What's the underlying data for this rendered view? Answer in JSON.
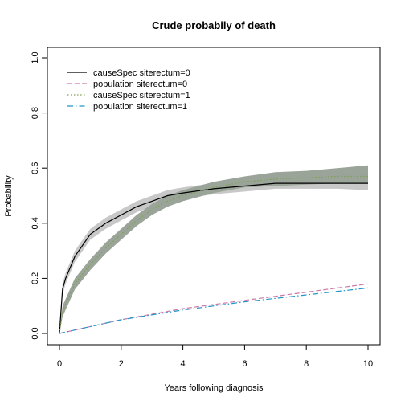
{
  "chart_data": {
    "type": "line",
    "title": "Crude probabily of death",
    "xlabel": "Years following diagnosis",
    "ylabel": "Probability",
    "xlim": [
      0,
      10
    ],
    "ylim": [
      0,
      1
    ],
    "x_ticks": [
      "0",
      "2",
      "4",
      "6",
      "8",
      "10"
    ],
    "y_ticks": [
      "0.0",
      "0.2",
      "0.4",
      "0.6",
      "0.8",
      "1.0"
    ],
    "grid": false,
    "legend_position": "top-left",
    "legend": [
      "causeSpec siterectum=0",
      "population siterectum=0",
      "causeSpec siterectum=1",
      "population siterectum=1"
    ],
    "colors": {
      "causeSpec_0": "#000000",
      "population_0": "#cc79a7",
      "causeSpec_1": "#7fa04f",
      "population_1": "#2196c9",
      "ci_band_0": "#c8c8c8",
      "ci_band_1": "#9aa498"
    },
    "series": [
      {
        "name": "causeSpec siterectum=0",
        "x": [
          0,
          0.1,
          0.2,
          0.5,
          1.0,
          1.5,
          2.0,
          2.5,
          3.0,
          3.5,
          4.0,
          5.0,
          6.0,
          7.0,
          8.0,
          9.0,
          10.0
        ],
        "y": [
          0,
          0.16,
          0.2,
          0.28,
          0.36,
          0.4,
          0.43,
          0.46,
          0.48,
          0.5,
          0.51,
          0.525,
          0.535,
          0.545,
          0.545,
          0.545,
          0.545
        ],
        "ci_lower": [
          0,
          0.14,
          0.18,
          0.26,
          0.34,
          0.38,
          0.41,
          0.44,
          0.46,
          0.48,
          0.49,
          0.505,
          0.515,
          0.525,
          0.525,
          0.525,
          0.52
        ],
        "ci_upper": [
          0,
          0.18,
          0.22,
          0.3,
          0.38,
          0.42,
          0.45,
          0.48,
          0.5,
          0.52,
          0.53,
          0.545,
          0.555,
          0.565,
          0.565,
          0.57,
          0.575
        ]
      },
      {
        "name": "population siterectum=0",
        "x": [
          0,
          2,
          4,
          6,
          8,
          10
        ],
        "y": [
          0,
          0.05,
          0.09,
          0.12,
          0.15,
          0.18
        ]
      },
      {
        "name": "causeSpec siterectum=1",
        "x": [
          0,
          0.1,
          0.5,
          1.0,
          1.5,
          2.0,
          2.5,
          3.0,
          3.5,
          4.0,
          5.0,
          6.0,
          7.0,
          8.0,
          9.0,
          10.0
        ],
        "y": [
          0,
          0.08,
          0.18,
          0.25,
          0.31,
          0.36,
          0.41,
          0.45,
          0.48,
          0.5,
          0.53,
          0.55,
          0.56,
          0.565,
          0.57,
          0.57
        ],
        "ci_lower": [
          0,
          0.06,
          0.16,
          0.23,
          0.29,
          0.34,
          0.39,
          0.43,
          0.46,
          0.48,
          0.51,
          0.53,
          0.535,
          0.54,
          0.545,
          0.545
        ],
        "ci_upper": [
          0,
          0.1,
          0.2,
          0.27,
          0.33,
          0.38,
          0.43,
          0.47,
          0.5,
          0.52,
          0.55,
          0.57,
          0.585,
          0.59,
          0.6,
          0.61
        ]
      },
      {
        "name": "population siterectum=1",
        "x": [
          0,
          2,
          4,
          6,
          8,
          10
        ],
        "y": [
          0,
          0.05,
          0.085,
          0.115,
          0.14,
          0.165
        ]
      }
    ]
  }
}
